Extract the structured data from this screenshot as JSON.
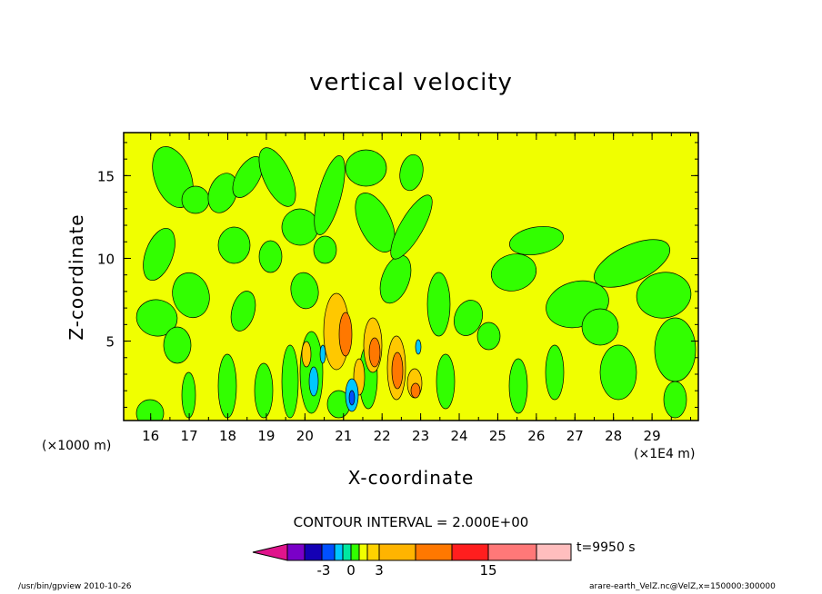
{
  "chart_data": {
    "type": "contour",
    "title": "vertical velocity",
    "xlabel": "X-coordinate",
    "ylabel": "Z-coordinate",
    "x_unit_left": "(×1000 m)",
    "x_unit_right": "(×1E4 m)",
    "x_ticks": [
      "16",
      "17",
      "18",
      "19",
      "20",
      "21",
      "22",
      "23",
      "24",
      "25",
      "26",
      "27",
      "28",
      "29"
    ],
    "x_tick_values": [
      16,
      17,
      18,
      19,
      20,
      21,
      22,
      23,
      24,
      25,
      26,
      27,
      28,
      29
    ],
    "xlim": [
      15.3,
      30.2
    ],
    "y_ticks": [
      "5",
      "10",
      "15"
    ],
    "y_tick_values": [
      5,
      10,
      15
    ],
    "ylim": [
      0.2,
      17.6
    ],
    "contour_interval": "CONTOUR INTERVAL = 2.000E+00",
    "time": "t=9950 s",
    "colorbar": {
      "labels": [
        "-3",
        "0",
        "3",
        "15"
      ],
      "label_values": [
        -3,
        0,
        3,
        15
      ],
      "colors": [
        "#e0148c",
        "#7a00c8",
        "#1400b4",
        "#0050ff",
        "#00c8ff",
        "#00e8a0",
        "#32ff00",
        "#f0ff00",
        "#ffd200",
        "#ffb400",
        "#ff7800",
        "#ff1e1e",
        "#ff7878",
        "#ffbebe",
        "#ffd2d2"
      ]
    },
    "colors": {
      "background_field": "#f0ff00",
      "negative_field": "#32ff00",
      "positive_weak": "#ffc800",
      "positive_mid": "#ff7800",
      "negative_strong": "#00c8ff",
      "negative_core": "#0050ff"
    }
  },
  "footer": {
    "left": "/usr/bin/gpview   2010-10-26",
    "right": "arare-earth_VelZ.nc@VelZ,x=150000:300000"
  }
}
